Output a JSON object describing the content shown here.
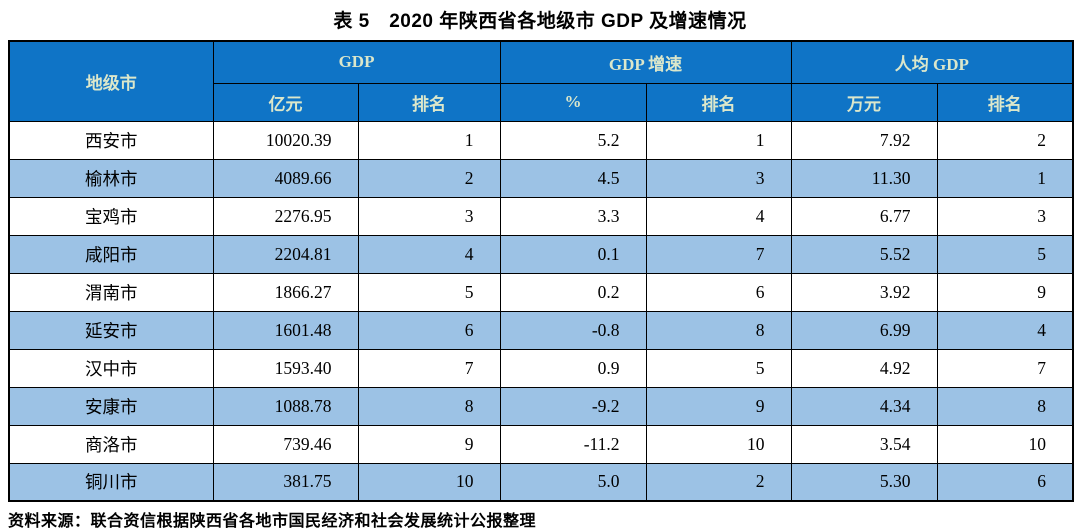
{
  "title": "表 5　2020 年陕西省各地级市 GDP 及增速情况",
  "source_note": "资料来源：联合资信根据陕西省各地市国民经济和社会发展统计公报整理",
  "colors": {
    "header_bg": "#0f74c6",
    "header_text": "#dbe7cb",
    "alt_row_bg": "#9cc2e5",
    "border": "#000000"
  },
  "table": {
    "header": {
      "city_col": "地级市",
      "groups": [
        {
          "label": "GDP",
          "sub": [
            "亿元",
            "排名"
          ]
        },
        {
          "label": "GDP 增速",
          "sub": [
            "%",
            "排名"
          ]
        },
        {
          "label": "人均 GDP",
          "sub": [
            "万元",
            "排名"
          ]
        }
      ]
    },
    "rows": [
      [
        "西安市",
        "10020.39",
        "1",
        "5.2",
        "1",
        "7.92",
        "2"
      ],
      [
        "榆林市",
        "4089.66",
        "2",
        "4.5",
        "3",
        "11.30",
        "1"
      ],
      [
        "宝鸡市",
        "2276.95",
        "3",
        "3.3",
        "4",
        "6.77",
        "3"
      ],
      [
        "咸阳市",
        "2204.81",
        "4",
        "0.1",
        "7",
        "5.52",
        "5"
      ],
      [
        "渭南市",
        "1866.27",
        "5",
        "0.2",
        "6",
        "3.92",
        "9"
      ],
      [
        "延安市",
        "1601.48",
        "6",
        "-0.8",
        "8",
        "6.99",
        "4"
      ],
      [
        "汉中市",
        "1593.40",
        "7",
        "0.9",
        "5",
        "4.92",
        "7"
      ],
      [
        "安康市",
        "1088.78",
        "8",
        "-9.2",
        "9",
        "4.34",
        "8"
      ],
      [
        "商洛市",
        "739.46",
        "9",
        "-11.2",
        "10",
        "3.54",
        "10"
      ],
      [
        "铜川市",
        "381.75",
        "10",
        "5.0",
        "2",
        "5.30",
        "6"
      ]
    ]
  },
  "chart_data": {
    "type": "table",
    "title": "表 5　2020 年陕西省各地级市 GDP 及增速情况",
    "columns": [
      "地级市",
      "GDP 亿元",
      "GDP 排名",
      "GDP增速 %",
      "GDP增速 排名",
      "人均GDP 万元",
      "人均GDP 排名"
    ],
    "rows": [
      [
        "西安市",
        10020.39,
        1,
        5.2,
        1,
        7.92,
        2
      ],
      [
        "榆林市",
        4089.66,
        2,
        4.5,
        3,
        11.3,
        1
      ],
      [
        "宝鸡市",
        2276.95,
        3,
        3.3,
        4,
        6.77,
        3
      ],
      [
        "咸阳市",
        2204.81,
        4,
        0.1,
        7,
        5.52,
        5
      ],
      [
        "渭南市",
        1866.27,
        5,
        0.2,
        6,
        3.92,
        9
      ],
      [
        "延安市",
        1601.48,
        6,
        -0.8,
        8,
        6.99,
        4
      ],
      [
        "汉中市",
        1593.4,
        7,
        0.9,
        5,
        4.92,
        7
      ],
      [
        "安康市",
        1088.78,
        8,
        -9.2,
        9,
        4.34,
        8
      ],
      [
        "商洛市",
        739.46,
        9,
        -11.2,
        10,
        3.54,
        10
      ],
      [
        "铜川市",
        381.75,
        10,
        5.0,
        2,
        5.3,
        6
      ]
    ],
    "source": "资料来源：联合资信根据陕西省各地市国民经济和社会发展统计公报整理"
  }
}
